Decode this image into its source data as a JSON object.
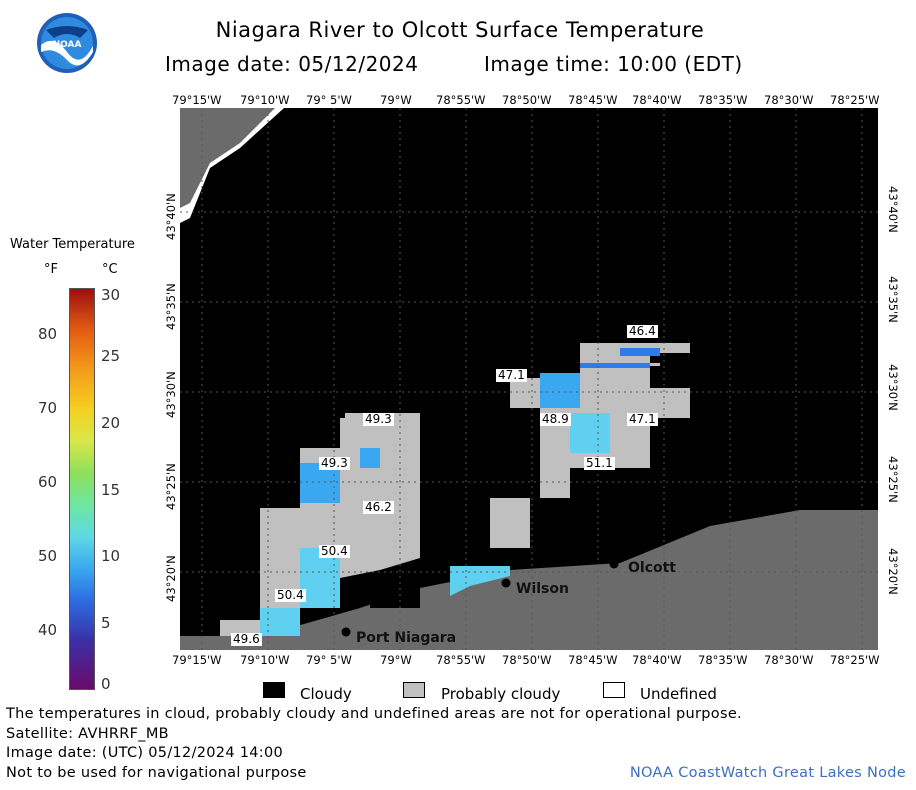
{
  "header": {
    "title": "Niagara River to Olcott Surface Temperature",
    "image_date": "Image date: 05/12/2024",
    "image_time": "Image time: 10:00 (EDT)"
  },
  "logo": {
    "text": "NOAA"
  },
  "longitude_labels": [
    "79°15'W",
    "79°10'W",
    "79° 5'W",
    "79°W",
    "78°55'W",
    "78°50'W",
    "78°45'W",
    "78°40'W",
    "78°35'W",
    "78°30'W",
    "78°25'W"
  ],
  "latitude_labels": [
    "43°40'N",
    "43°35'N",
    "43°30'N",
    "43°25'N",
    "43°20'N"
  ],
  "legend": {
    "title": "Water Temperature",
    "unit_f": "°F",
    "unit_c": "°C",
    "fahrenheit_ticks": [
      "80",
      "70",
      "60",
      "50",
      "40"
    ],
    "celsius_ticks": [
      "30",
      "25",
      "20",
      "15",
      "10",
      "5",
      "0"
    ]
  },
  "temperature_labels": [
    "46.4",
    "47.1",
    "48.9",
    "47.1",
    "51.1",
    "49.3",
    "49.3",
    "46.2",
    "50.4",
    "50.4",
    "49.6"
  ],
  "places": [
    "Olcott",
    "Wilson",
    "Port Niagara"
  ],
  "key": {
    "cloudy": "Cloudy",
    "probably_cloudy": "Probably cloudy",
    "undefined": "Undefined"
  },
  "footer": {
    "note": "The temperatures in cloud, probably cloudy and undefined areas are not for operational purpose.",
    "satellite": "Satellite: AVHRRF_MB",
    "utc_date": "Image date: (UTC) 05/12/2024  14:00",
    "navigation": "Not to be used for navigational purpose",
    "credit": "NOAA CoastWatch Great Lakes Node"
  },
  "colors": {
    "cloudy": "#000000",
    "probably_cloudy": "#c0c0c0",
    "undefined": "#ffffff",
    "land": "#6b6b6b",
    "water_warm": "#3aa8f0",
    "credit": "#3a6fc4"
  }
}
